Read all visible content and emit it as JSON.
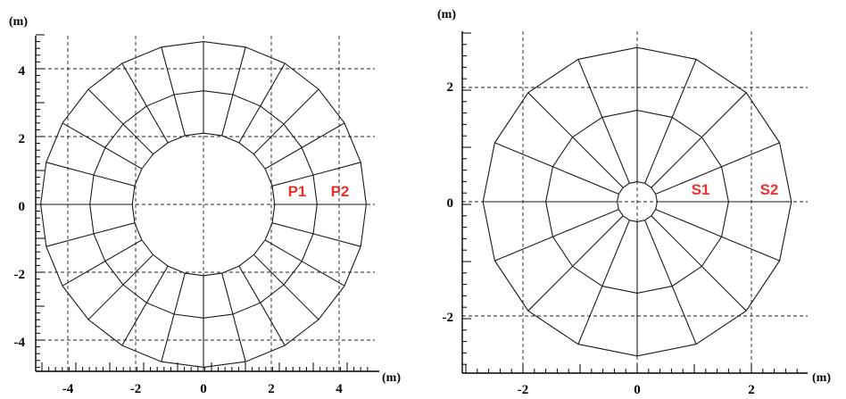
{
  "left_panel": {
    "y_unit": "(m)",
    "x_unit": "(m)",
    "x_ticks": [
      "-4",
      "-2",
      "0",
      "2",
      "4"
    ],
    "y_ticks": [
      "4",
      "2",
      "0",
      "-2",
      "-4"
    ],
    "point_labels": [
      "P1",
      "P2"
    ],
    "mesh": {
      "radii": [
        2.1,
        3.35,
        4.8
      ],
      "segments": 24
    }
  },
  "right_panel": {
    "y_unit": "(m)",
    "x_unit": "(m)",
    "x_ticks": [
      "-2",
      "0",
      "2"
    ],
    "y_ticks": [
      "2",
      "0",
      "-2"
    ],
    "point_labels": [
      "S1",
      "S2"
    ],
    "mesh": {
      "radii": [
        0.35,
        1.6,
        2.7
      ],
      "segments": 16
    }
  }
}
